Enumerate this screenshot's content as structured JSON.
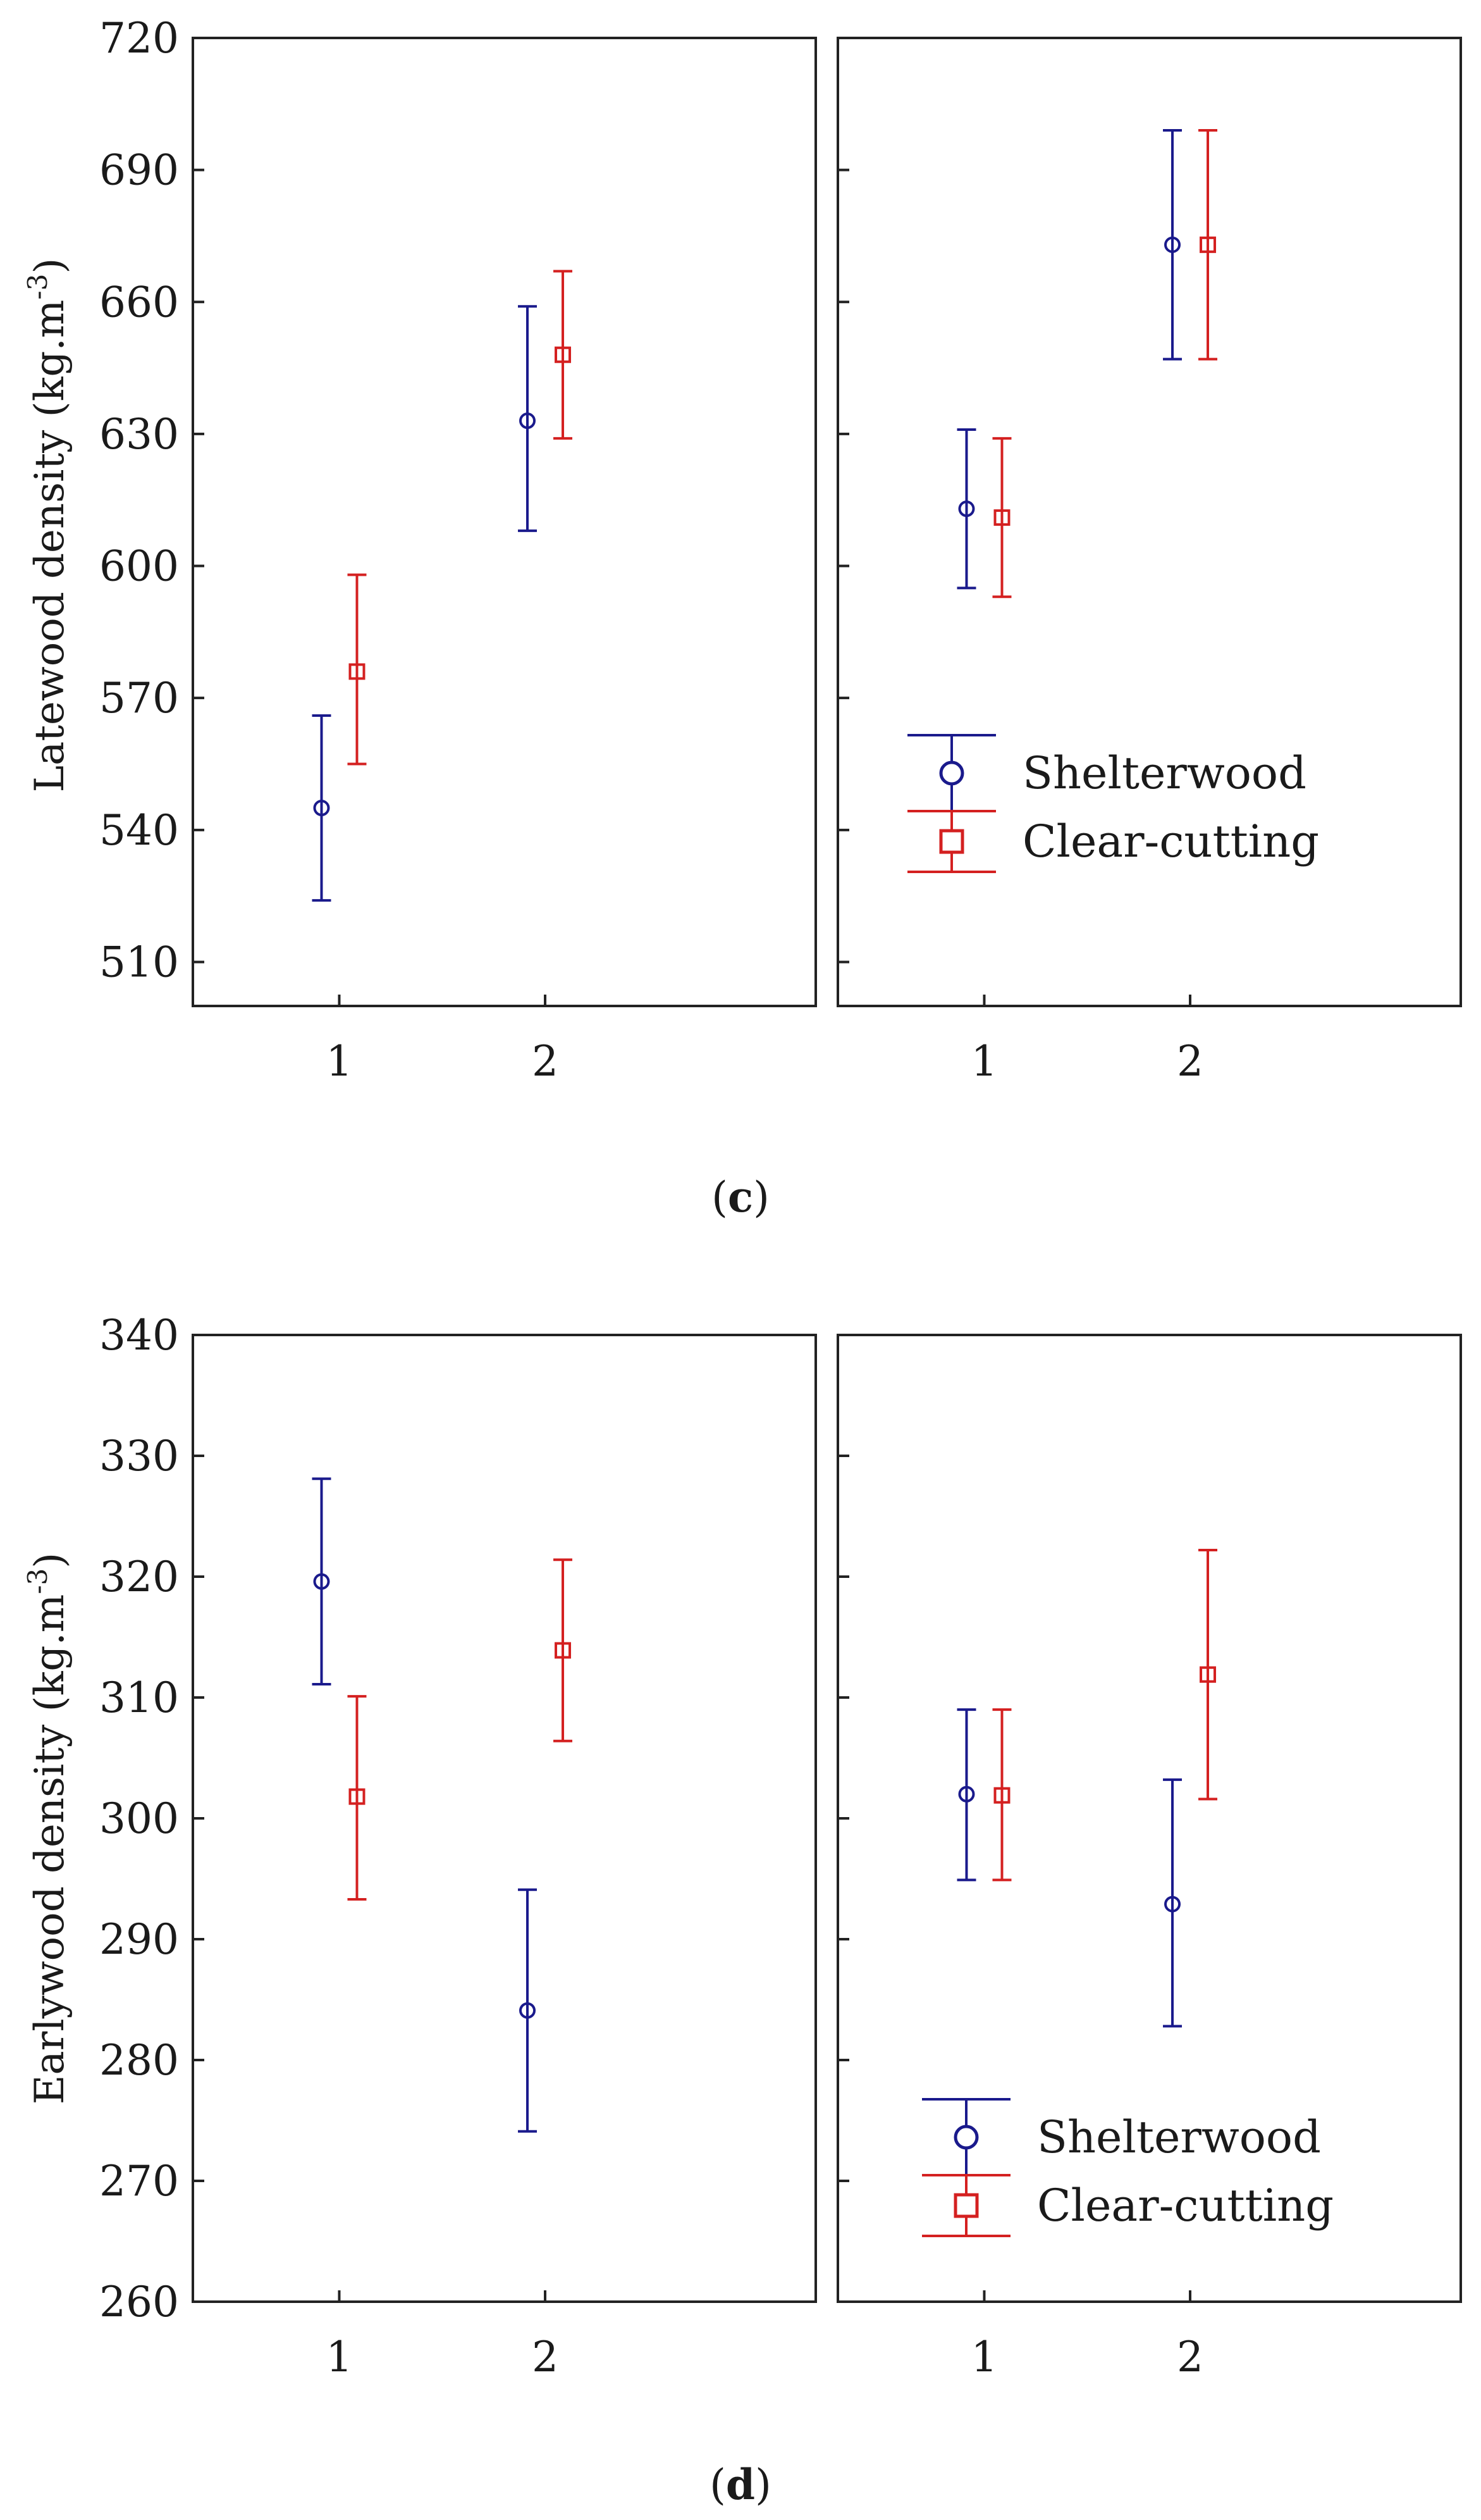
{
  "chart_data": [
    {
      "type": "scatter",
      "panel_label": "c",
      "ylabel": "Latewood density (kg.m",
      "ylabel_sup": "-3",
      "ylabel_close": ")",
      "ylim": [
        500,
        720
      ],
      "yticks": [
        "510",
        "540",
        "570",
        "600",
        "630",
        "660",
        "690",
        "720"
      ],
      "categories": [
        "1",
        "2"
      ],
      "subplots": [
        {
          "name": "left",
          "series": [
            {
              "name": "Shelterwood",
              "color": "#1a1a8c",
              "marker": "circle",
              "mean": [
                545,
                633
              ],
              "lower": [
                524,
                608
              ],
              "upper": [
                566,
                659
              ]
            },
            {
              "name": "Clear-cutting",
              "color": "#d42020",
              "marker": "square",
              "mean": [
                576,
                648
              ],
              "lower": [
                555,
                629
              ],
              "upper": [
                598,
                667
              ]
            }
          ]
        },
        {
          "name": "right",
          "series": [
            {
              "name": "Shelterwood",
              "color": "#1a1a8c",
              "marker": "circle",
              "mean": [
                613,
                673
              ],
              "lower": [
                595,
                647
              ],
              "upper": [
                631,
                699
              ]
            },
            {
              "name": "Clear-cutting",
              "color": "#d42020",
              "marker": "square",
              "mean": [
                611,
                673
              ],
              "lower": [
                593,
                647
              ],
              "upper": [
                629,
                699
              ]
            }
          ]
        }
      ],
      "legend": [
        "Shelterwood",
        "Clear-cutting"
      ]
    },
    {
      "type": "scatter",
      "panel_label": "d",
      "ylabel": "Earlywood density (kg.m",
      "ylabel_sup": "-3",
      "ylabel_close": ")",
      "ylim": [
        260,
        340
      ],
      "yticks": [
        "260",
        "270",
        "280",
        "290",
        "300",
        "310",
        "320",
        "330",
        "340"
      ],
      "categories": [
        "1",
        "2"
      ],
      "subplots": [
        {
          "name": "left",
          "series": [
            {
              "name": "Shelterwood",
              "color": "#1a1a8c",
              "marker": "circle",
              "mean": [
                319.6,
                284.1
              ],
              "lower": [
                311.1,
                274.1
              ],
              "upper": [
                328.1,
                294.1
              ]
            },
            {
              "name": "Clear-cutting",
              "color": "#d42020",
              "marker": "square",
              "mean": [
                301.8,
                313.9
              ],
              "lower": [
                293.3,
                306.4
              ],
              "upper": [
                310.1,
                321.4
              ]
            }
          ]
        },
        {
          "name": "right",
          "series": [
            {
              "name": "Shelterwood",
              "color": "#1a1a8c",
              "marker": "circle",
              "mean": [
                302.0,
                292.9
              ],
              "lower": [
                294.9,
                282.8
              ],
              "upper": [
                309.0,
                303.2
              ]
            },
            {
              "name": "Clear-cutting",
              "color": "#d42020",
              "marker": "square",
              "mean": [
                301.9,
                311.9
              ],
              "lower": [
                294.9,
                301.6
              ],
              "upper": [
                309.0,
                322.2
              ]
            }
          ]
        }
      ],
      "legend": [
        "Shelterwood",
        "Clear-cutting"
      ]
    }
  ]
}
